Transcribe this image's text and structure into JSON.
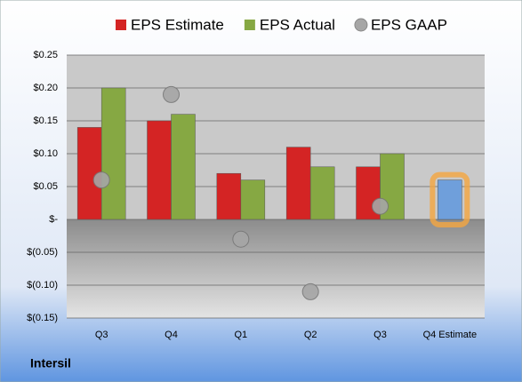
{
  "chart_data": {
    "type": "bar",
    "categories": [
      "Q3",
      "Q4",
      "Q1",
      "Q2",
      "Q3",
      "Q4 Estimate"
    ],
    "series": [
      {
        "name": "EPS Estimate",
        "color": "#d42424",
        "values": [
          0.14,
          0.15,
          0.07,
          0.11,
          0.08,
          0.06
        ]
      },
      {
        "name": "EPS Actual",
        "color": "#86a843",
        "values": [
          0.2,
          0.16,
          0.06,
          0.08,
          0.1,
          null
        ]
      },
      {
        "name": "EPS GAAP",
        "color": "#a6a6a6",
        "type": "scatter",
        "values": [
          0.06,
          0.19,
          -0.03,
          -0.11,
          0.02,
          null
        ]
      }
    ],
    "highlight_color": "#6f9fdb",
    "ylim": [
      -0.15,
      0.25
    ],
    "yticks": [
      {
        "value": 0.25,
        "label": "$0.25"
      },
      {
        "value": 0.2,
        "label": "$0.20"
      },
      {
        "value": 0.15,
        "label": "$0.15"
      },
      {
        "value": 0.1,
        "label": "$0.10"
      },
      {
        "value": 0.05,
        "label": "$0.05"
      },
      {
        "value": 0,
        "label": "$-"
      },
      {
        "value": -0.05,
        "label": "$(0.05)"
      },
      {
        "value": -0.1,
        "label": "$(0.10)"
      },
      {
        "value": -0.15,
        "label": "$(0.15)"
      }
    ],
    "grid": true,
    "footer": "Intersil"
  }
}
